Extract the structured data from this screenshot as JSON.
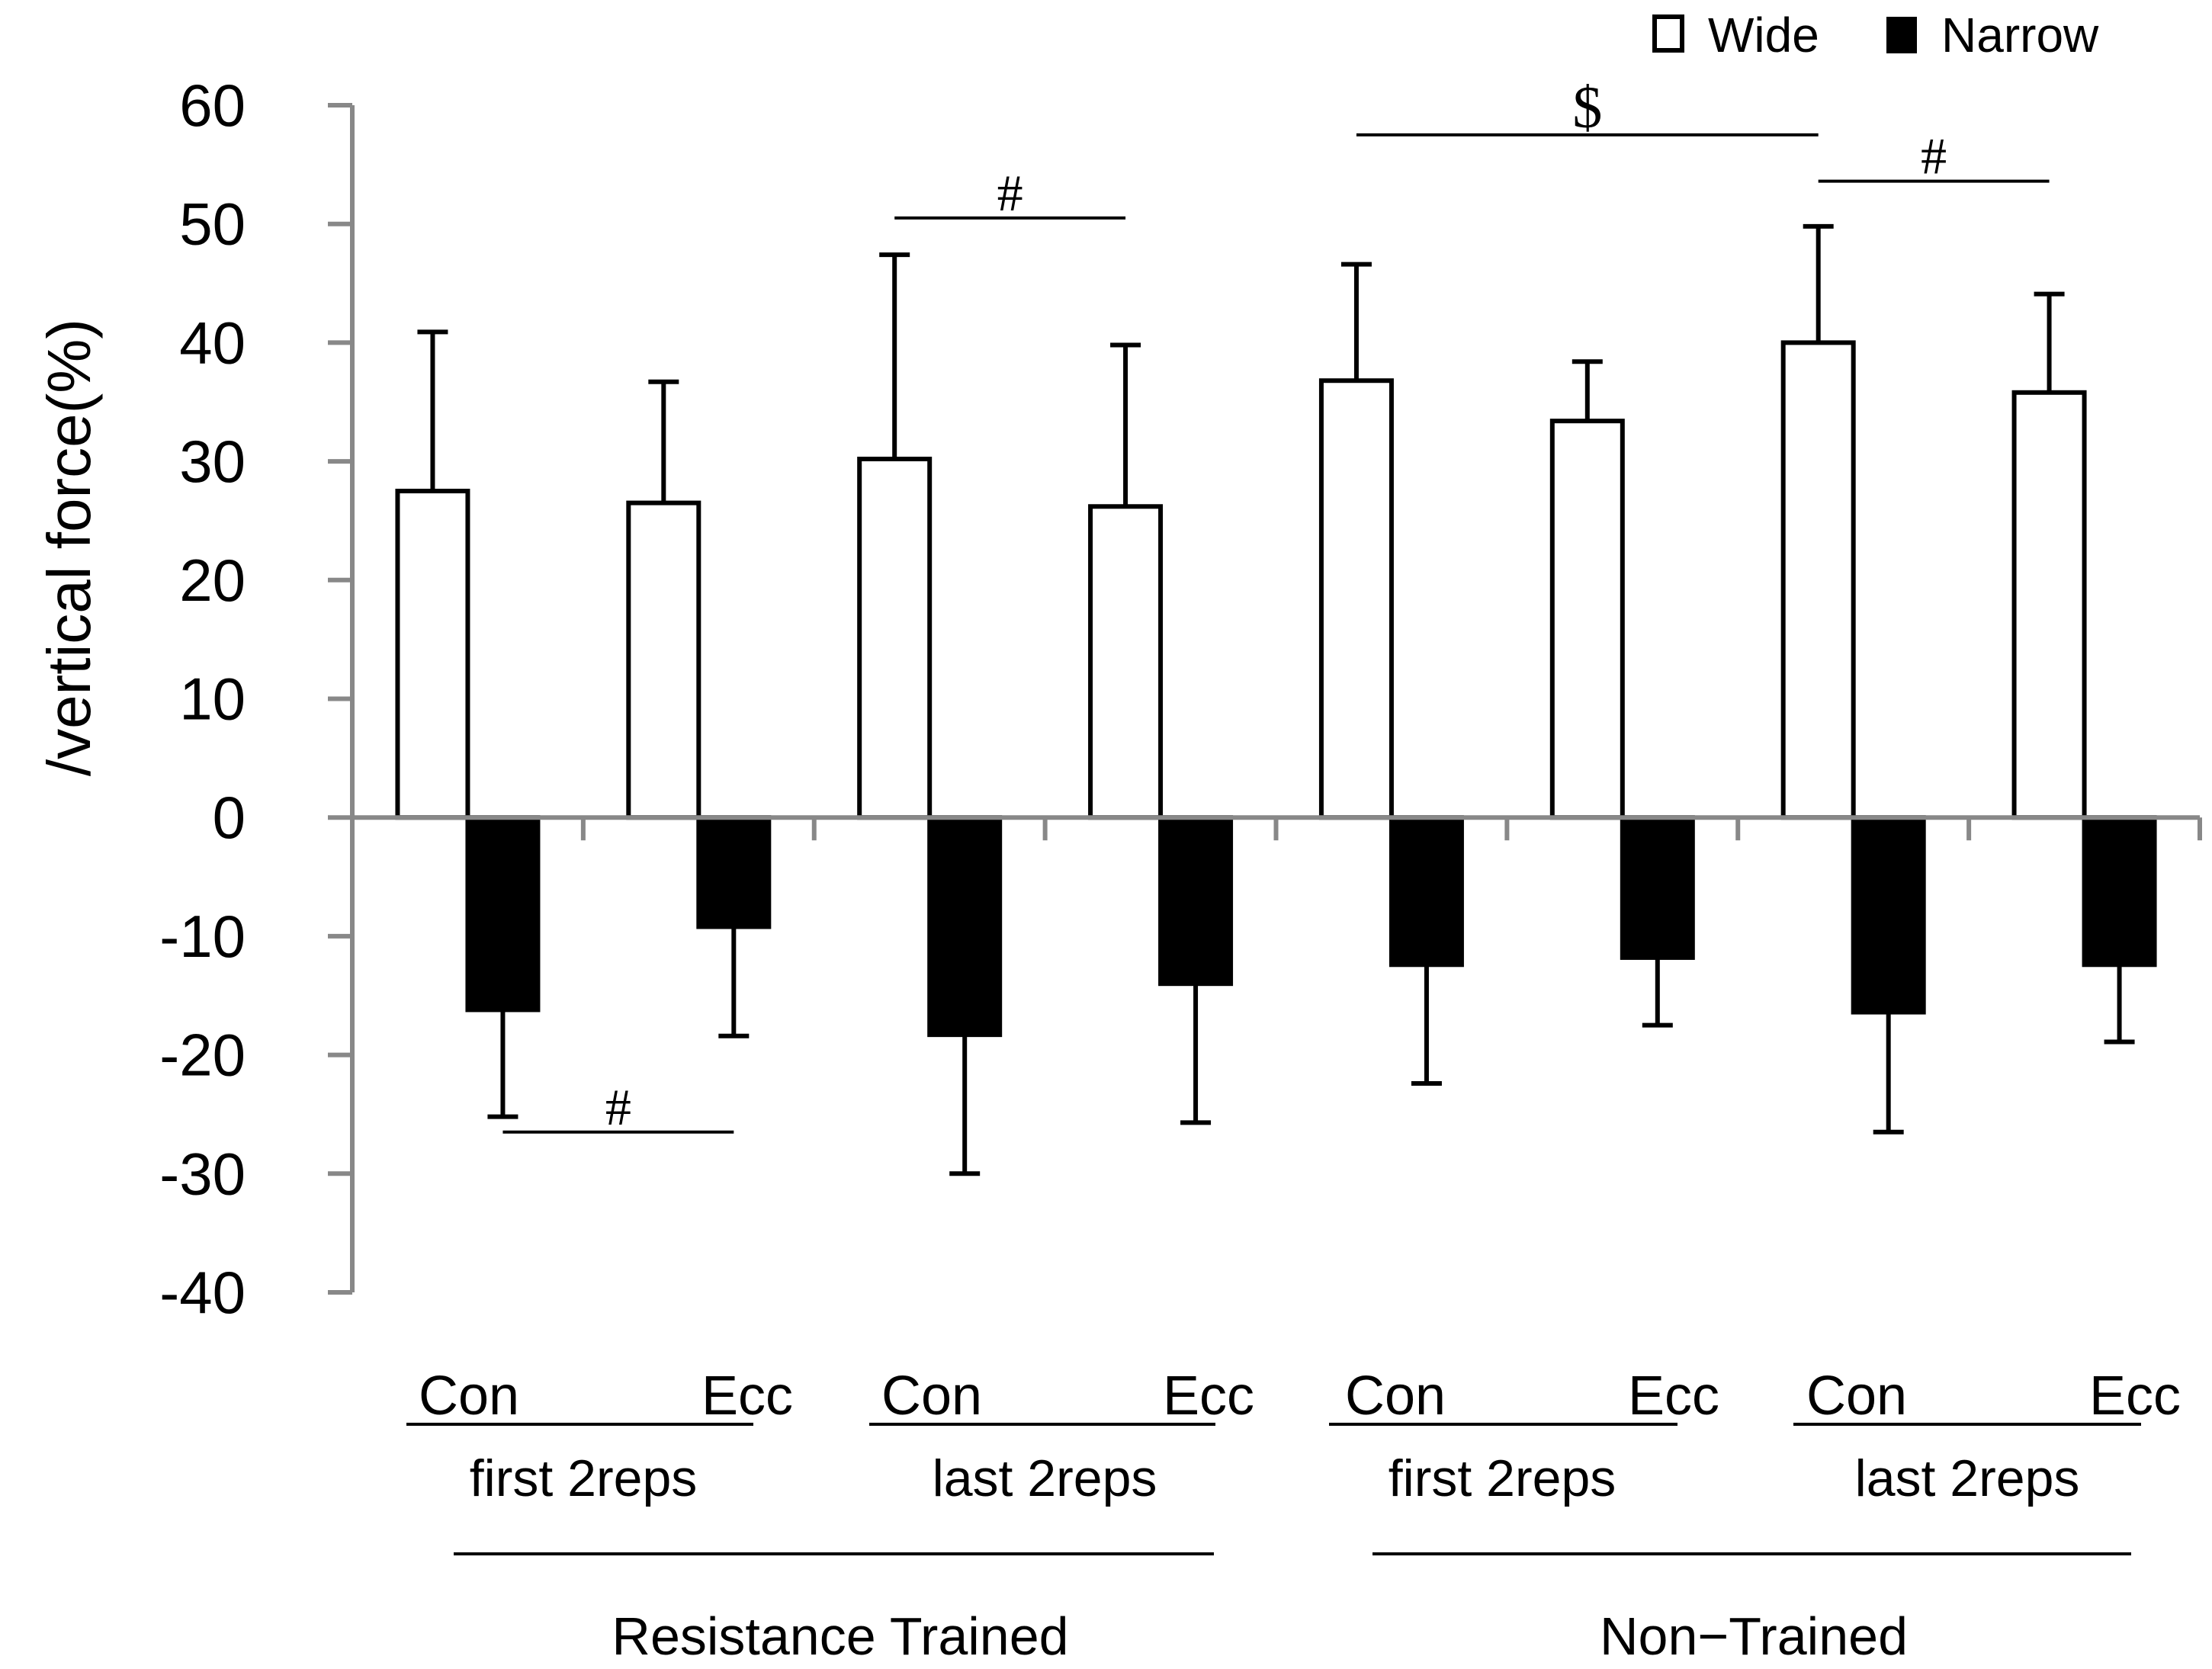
{
  "chart_data": {
    "type": "bar",
    "title": "",
    "ylabel": "/vertical force(%)",
    "xlabel": "",
    "ylim": [
      -40,
      60
    ],
    "yticks": [
      "60",
      "50",
      "40",
      "30",
      "20",
      "10",
      "0",
      "-10",
      "-20",
      "-30",
      "-40"
    ],
    "legend": {
      "position": "top-right",
      "entries": [
        "Wide",
        "Narrow"
      ]
    },
    "categories": [
      "Con",
      "Ecc",
      "Con",
      "Ecc",
      "Con",
      "Ecc",
      "Con",
      "Ecc"
    ],
    "phases": [
      "first 2reps",
      "last 2reps",
      "first 2reps",
      "last 2reps"
    ],
    "groups": [
      "Resistance Trained",
      "Non−Trained"
    ],
    "series": [
      {
        "name": "Wide",
        "color": "#ffffff",
        "values": [
          27.5,
          26.5,
          30.2,
          26.2,
          36.8,
          33.4,
          40.0,
          35.8
        ],
        "errors": [
          13.4,
          10.2,
          17.2,
          13.6,
          9.8,
          5.0,
          9.8,
          8.3
        ]
      },
      {
        "name": "Narrow",
        "color": "#000000",
        "values": [
          -16.2,
          -9.2,
          -18.3,
          -14.0,
          -12.4,
          -11.8,
          -16.4,
          -12.4
        ],
        "errors": [
          9.0,
          9.2,
          11.7,
          11.7,
          10.0,
          5.7,
          10.1,
          6.5
        ]
      }
    ],
    "annotations": [
      {
        "text": "#",
        "series": "Narrow",
        "from_category": 0,
        "to_category": 1,
        "value": -26.5
      },
      {
        "text": "#",
        "series": "Wide",
        "from_category": 2,
        "to_category": 3,
        "value": 50.5
      },
      {
        "text": "$",
        "series": "Wide",
        "from_category": 4,
        "to_category": 6,
        "value": 57.5
      },
      {
        "text": "#",
        "series": "Wide",
        "from_category": 6,
        "to_category": 7,
        "value": 53.6
      }
    ]
  }
}
